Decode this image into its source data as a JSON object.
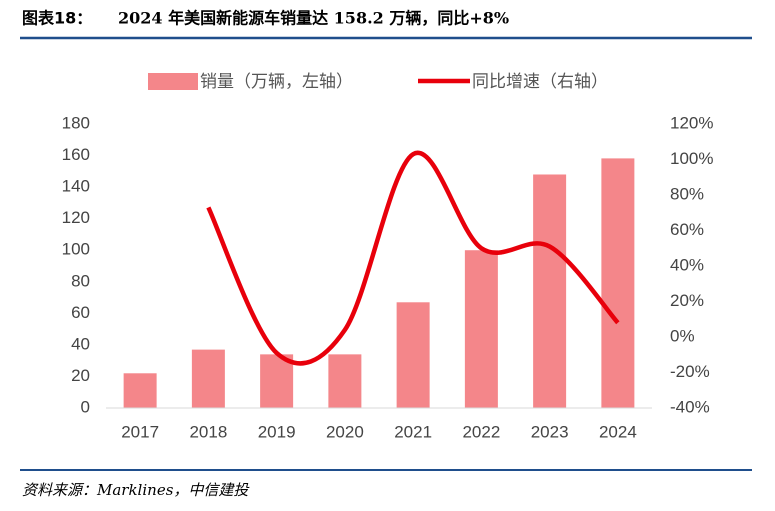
{
  "figure_label": "图表18：",
  "source": "资料来源：Marklines，中信建投",
  "chart_data": {
    "type": "bar_line",
    "title": "2024 年美国新能源车销量达 158.2 万辆，同比+8%",
    "categories": [
      "2017",
      "2018",
      "2019",
      "2020",
      "2021",
      "2022",
      "2023",
      "2024"
    ],
    "series": [
      {
        "name": "销量（万辆，左轴）",
        "color": "#f4868a",
        "type": "bar",
        "values": [
          22,
          37,
          34,
          34,
          67,
          100,
          148,
          158.2
        ]
      },
      {
        "name": "同比增速（右轴）",
        "color": "#e8000b",
        "type": "line",
        "axis": "y2",
        "values": [
          null,
          73,
          -9,
          4,
          103,
          50,
          51,
          8
        ]
      }
    ],
    "ylim": [
      0,
      180
    ],
    "yticks": [
      0,
      20,
      40,
      60,
      80,
      100,
      120,
      140,
      160,
      180
    ],
    "y2lim": [
      -40,
      120
    ],
    "y2ticks": [
      {
        "value": -40,
        "label": "-40%"
      },
      {
        "value": -20,
        "label": "-20%"
      },
      {
        "value": 0,
        "label": "0%"
      },
      {
        "value": 20,
        "label": "20%"
      },
      {
        "value": 40,
        "label": "40%"
      },
      {
        "value": 60,
        "label": "60%"
      },
      {
        "value": 80,
        "label": "80%"
      },
      {
        "value": 100,
        "label": "100%"
      },
      {
        "value": 120,
        "label": "120%"
      }
    ],
    "legend": "top"
  }
}
